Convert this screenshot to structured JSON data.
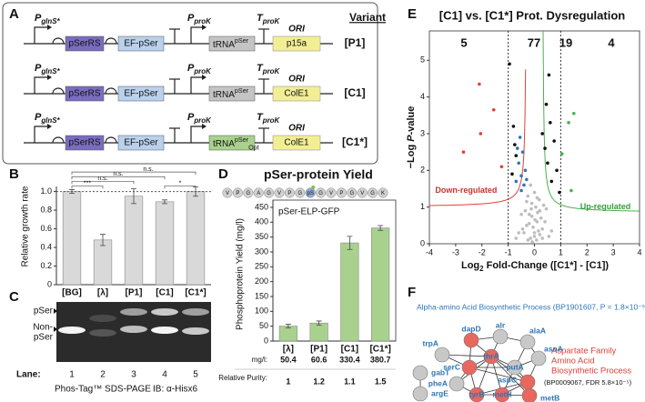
{
  "panels": {
    "a": "A",
    "b": "B",
    "c": "C",
    "d": "D",
    "e": "E",
    "f": "F"
  },
  "construct": {
    "variant_header": "Variant",
    "rows": [
      {
        "promoter": {
          "main": "P",
          "sub": "glnS*"
        },
        "genes": [
          "pSerRS",
          "EF-pSer"
        ],
        "p_prok": {
          "main": "P",
          "sub": "proK"
        },
        "t_prok": {
          "main": "T",
          "sub": "proK"
        },
        "trna": {
          "main": "tRNA",
          "sup": "pSer"
        },
        "trna_color": "#c4c4c4",
        "ori_label": "ORI",
        "ori": "p15a",
        "variant": "[P1]"
      },
      {
        "promoter": {
          "main": "P",
          "sub": "glnS*"
        },
        "genes": [
          "pSerRS",
          "EF-pSer"
        ],
        "p_prok": {
          "main": "P",
          "sub": "proK"
        },
        "t_prok": {
          "main": "T",
          "sub": "proK"
        },
        "trna": {
          "main": "tRNA",
          "sup": "pSer"
        },
        "trna_color": "#c4c4c4",
        "ori_label": "ORI",
        "ori": "ColE1",
        "variant": "[C1]"
      },
      {
        "promoter": {
          "main": "P",
          "sub": "glnS*"
        },
        "genes": [
          "pSerRS",
          "EF-pSer"
        ],
        "p_prok": {
          "main": "P",
          "sub": "proK"
        },
        "t_prok": {
          "main": "T",
          "sub": "proK"
        },
        "trna": {
          "main": "tRNA",
          "sup": "pSer",
          "sub": "Opt"
        },
        "trna_color": "#a9d18e",
        "ori_label": "ORI",
        "ori": "ColE1",
        "variant": "[C1*]"
      }
    ]
  },
  "chart_data": [
    {
      "type": "bar",
      "ylabel": "Relative growth rate",
      "categories": [
        "[BG]",
        "[λ]",
        "[P1]",
        "[C1]",
        "[C1*]"
      ],
      "values": [
        1.0,
        0.48,
        0.95,
        0.89,
        1.0
      ],
      "errors": [
        0.02,
        0.06,
        0.08,
        0.02,
        0.05
      ],
      "color": "#d9d9d9",
      "ylim": [
        0,
        1.25
      ],
      "yticks": [
        0,
        0.2,
        0.4,
        0.6,
        0.8,
        {
          "value": 1,
          "label": "1.0"
        }
      ],
      "reference_line": 1,
      "significance": [
        "***",
        "n.s.",
        "n.s.",
        "*",
        "n.s."
      ]
    },
    {
      "type": "bar",
      "title": "pSer-protein Yield",
      "sequence": [
        "V",
        "P",
        "G",
        "A",
        "G",
        "V",
        "P",
        "G",
        "pS",
        "G",
        "V",
        "P",
        "G",
        "V",
        "G",
        "K"
      ],
      "subtitle": "pSer-ELP-GFP",
      "ylabel": "Phosphoprotein Yield (mg/l)",
      "categories": [
        "[λ]",
        "[P1]",
        "[C1]",
        "[C1*]"
      ],
      "values": [
        50.4,
        60.6,
        330.4,
        380.7
      ],
      "errors": [
        6,
        7,
        22,
        8
      ],
      "color": "#a9d18e",
      "ylim": [
        0,
        450
      ],
      "yticks": [
        0,
        50,
        100,
        150,
        200,
        250,
        300,
        350,
        400,
        450
      ],
      "yield_label": "mg/l:",
      "purity_label": "Relative Purity:",
      "purity": [
        1,
        1.2,
        1.1,
        1.5
      ]
    },
    {
      "type": "scatter",
      "title": "[C1] vs. [C1*] Prot. Dysregulation",
      "xlabel": {
        "main": "Log",
        "sub": "2",
        "rest": " Fold-Change ([C1*] - [C1])"
      },
      "ylabel": {
        "main": "−Log ",
        "italic": "P",
        "rest": "-value"
      },
      "xlim": [
        -4,
        4
      ],
      "ylim": [
        0,
        5.8
      ],
      "xticks": [
        -4,
        -3,
        -2,
        -1,
        0,
        1,
        2,
        3,
        4
      ],
      "yticks": [
        0,
        1,
        2,
        3,
        4,
        5
      ],
      "thresholds": [
        -1,
        1
      ],
      "region_counts": [
        5,
        77,
        19,
        4
      ],
      "down_label": "Down-regulated",
      "up_label": "Up-regulated",
      "series": [
        {
          "color": "#bdbdbd",
          "x": [
            -0.4,
            -0.3,
            -0.2,
            -0.1,
            0,
            0.1,
            0.2,
            0.3,
            -0.25,
            -0.15,
            0.05,
            0.15,
            0.25,
            -0.35,
            -0.05,
            0.1,
            -0.2,
            0.2,
            -0.1,
            0,
            0.35,
            -0.45,
            0.4,
            -0.6,
            0.55,
            -0.3,
            0.3,
            -0.15,
            0.12,
            -0.08,
            0.02,
            -0.5,
            0.45,
            -0.7,
            0.65,
            -0.25,
            0.18,
            -0.12,
            0.08,
            0
          ],
          "values": [
            0.3,
            0.5,
            0.8,
            1.1,
            0.2,
            0.6,
            0.9,
            0.4,
            1.3,
            0.15,
            1.0,
            0.35,
            0.7,
            0.9,
            0.45,
            1.25,
            0.55,
            0.25,
            0.75,
            1.4,
            1.05,
            0.4,
            0.6,
            0.3,
            0.2,
            1.15,
            0.15,
            1.6,
            0.85,
            0.05,
            0.65,
            0.8,
            0.95,
            0.15,
            0.35,
            0.1,
            1.2,
            0.95,
            0.1,
            0.3
          ]
        },
        {
          "color": "#111111",
          "x": [
            -0.95,
            -0.8,
            -0.7,
            0.45,
            0.6,
            0.75,
            0.5,
            0.85,
            0.65,
            0.4,
            -0.85,
            0.95,
            0.55,
            -0.75,
            0.3
          ],
          "values": [
            4.9,
            3.2,
            2.4,
            3.8,
            3.3,
            2.8,
            2.2,
            2.0,
            1.7,
            2.6,
            1.9,
            1.4,
            4.6,
            2.7,
            3.0
          ]
        },
        {
          "color": "#2e75b6",
          "x": [
            -0.55,
            -0.45,
            -0.6,
            -0.35,
            -0.5,
            -0.7,
            -0.4,
            -0.65,
            -0.3,
            -0.5
          ],
          "values": [
            2.9,
            2.5,
            2.2,
            2.0,
            1.85,
            1.7,
            1.6,
            2.6,
            1.75,
            1.45
          ]
        },
        {
          "color": "#e0413a",
          "x": [
            -2.1,
            -1.55,
            -2.05,
            -2.7,
            -1.25
          ],
          "values": [
            4.35,
            3.65,
            3.0,
            2.5,
            2.1
          ]
        },
        {
          "color": "#4caf50",
          "x": [
            1.5,
            1.3,
            1.05,
            1.4
          ],
          "values": [
            3.55,
            3.3,
            2.45,
            1.45
          ]
        }
      ]
    }
  ],
  "gel": {
    "band_labels": [
      "pSer",
      "Non-",
      "pSer"
    ],
    "lane_label": "Lane:",
    "lanes": [
      "1",
      "2",
      "3",
      "4",
      "5"
    ],
    "method": "Phos-Tag™ SDS-PAGE",
    "blot": "IB: α-Hisx6"
  },
  "network": {
    "blue_title": "Alpha-amino Acid Biosynthetic Process (BP1901607, P = 1.8×10⁻⁵)",
    "red_title": [
      "Aspartate Family",
      "Amino Acid",
      "Biosynthetic Process"
    ],
    "red_id": "(BP0009067, FDR 5.8×10⁻⁵)",
    "nodes": [
      {
        "label": "dapD",
        "color": "#e8675e"
      },
      {
        "label": "alr",
        "color": "#c8c8c8"
      },
      {
        "label": "alaA",
        "color": "#c8c8c8"
      },
      {
        "label": "asnA",
        "color": "#c8c8c8"
      },
      {
        "label": "trpA",
        "color": "#c8c8c8"
      },
      {
        "label": "thrA",
        "color": "#e8675e"
      },
      {
        "label": "serC",
        "color": "#e8675e"
      },
      {
        "label": "putA",
        "color": "#c8c8c8"
      },
      {
        "label": "gabT",
        "color": "#c8c8c8"
      },
      {
        "label": "pheA",
        "color": "#c8c8c8"
      },
      {
        "label": "aspC",
        "color": "#e8675e"
      },
      {
        "label": "argE",
        "color": "#c8c8c8"
      },
      {
        "label": "tyrB",
        "color": "#e8675e"
      },
      {
        "label": "metH",
        "color": "#e8675e"
      },
      {
        "label": "metB",
        "color": "#e8675e"
      }
    ]
  }
}
